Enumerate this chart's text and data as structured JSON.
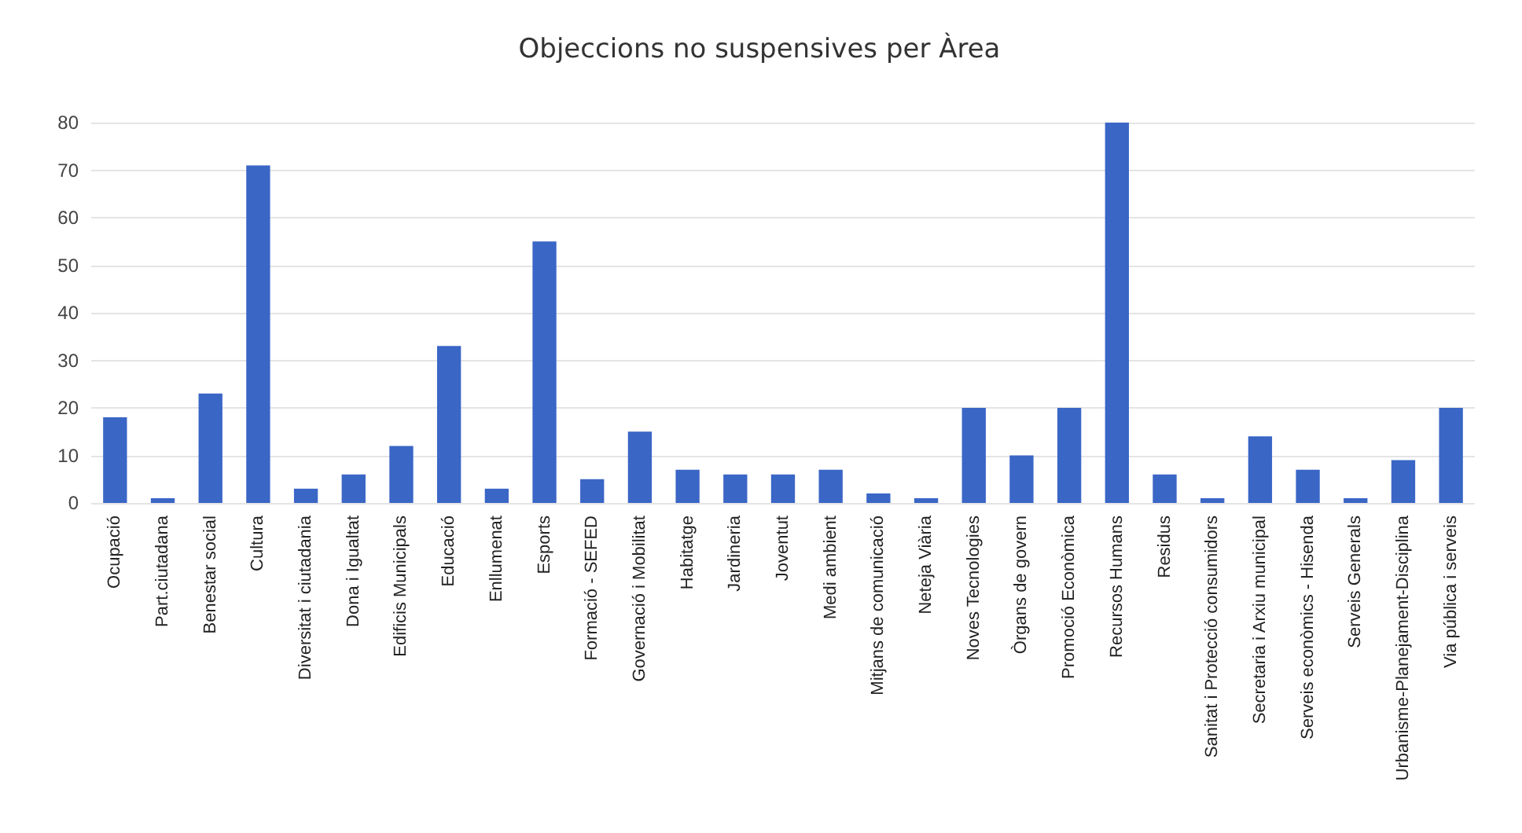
{
  "chart_data": {
    "type": "bar",
    "title": "Objeccions no suspensives per Àrea",
    "categories": [
      "Ocupació",
      "Part.ciutadana",
      "Benestar social",
      "Cultura",
      "Diversitat i ciutadania",
      "Dona i Igualtat",
      "Edificis Municipals",
      "Educació",
      "Enllumenat",
      "Esports",
      "Formació - SEFED",
      "Governació i Mobilitat",
      "Habitatge",
      "Jardineria",
      "Joventut",
      "Medi ambient",
      "Mitjans de comunicació",
      "Neteja Viària",
      "Noves Tecnologies",
      "Òrgans de govern",
      "Promoció Econòmica",
      "Recursos Humans",
      "Residus",
      "Sanitat i Protecció consumidors",
      "Secretaria i Arxiu municipal",
      "Serveis econòmics - Hisenda",
      "Serveis Generals",
      "Urbanisme-Planejament-Disciplina",
      "Via pública i serveis"
    ],
    "values": [
      18,
      1,
      23,
      71,
      3,
      6,
      12,
      33,
      3,
      55,
      5,
      15,
      7,
      6,
      6,
      7,
      2,
      1,
      20,
      10,
      20,
      80,
      6,
      1,
      14,
      7,
      1,
      9,
      20
    ],
    "color": "#3a66c6",
    "ylim": [
      0,
      80
    ],
    "yticks": [
      0,
      10,
      20,
      30,
      40,
      50,
      60,
      70,
      80
    ],
    "grid": "y"
  }
}
